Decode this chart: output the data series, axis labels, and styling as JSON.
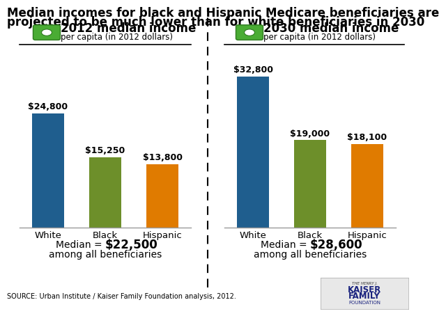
{
  "title_line1": "Median incomes for black and Hispanic Medicare beneficiaries are",
  "title_line2": "projected to be much lower than for white beneficiaries in 2030",
  "left_panel": {
    "header_bold": "2012 median income",
    "header_sub": "per capita (in 2012 dollars)",
    "categories": [
      "White",
      "Black",
      "Hispanic"
    ],
    "values": [
      24800,
      15250,
      13800
    ],
    "labels": [
      "$24,800",
      "$15,250",
      "$13,800"
    ],
    "colors": [
      "#1f5e8e",
      "#6d8f2a",
      "#e07b00"
    ],
    "median_label": "Median = ",
    "median_value": "$22,500",
    "median_sub": "among all beneficiaries"
  },
  "right_panel": {
    "header_bold": "2030 median income",
    "header_sub": "per capita (in 2012 dollars)",
    "categories": [
      "White",
      "Black",
      "Hispanic"
    ],
    "values": [
      32800,
      19000,
      18100
    ],
    "labels": [
      "$32,800",
      "$19,000",
      "$18,100"
    ],
    "colors": [
      "#1f5e8e",
      "#6d8f2a",
      "#e07b00"
    ],
    "median_label": "Median = ",
    "median_value": "$28,600",
    "median_sub": "among all beneficiaries"
  },
  "source_text": "SOURCE: Urban Institute / Kaiser Family Foundation analysis, 2012.",
  "background_color": "#ffffff",
  "ymax": 36000,
  "title_fontsize": 12,
  "bar_label_fontsize": 9,
  "header_bold_fontsize": 12,
  "header_sub_fontsize": 8.5,
  "median_fontsize": 10,
  "median_value_fontsize": 12,
  "xticklabel_fontsize": 9.5
}
